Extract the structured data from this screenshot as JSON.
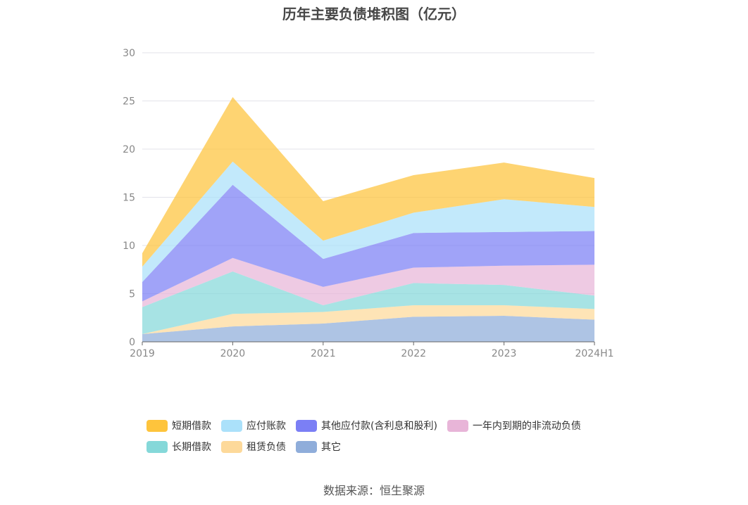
{
  "title": "历年主要负债堆积图（亿元）",
  "source": "数据来源：恒生聚源",
  "chart_data": {
    "type": "area",
    "stacked": true,
    "title": "历年主要负债堆积图（亿元）",
    "x": [
      "2019",
      "2020",
      "2021",
      "2022",
      "2023",
      "2024H1"
    ],
    "ylim": [
      0,
      30
    ],
    "yticks": [
      0,
      5,
      10,
      15,
      20,
      25,
      30
    ],
    "grid": true,
    "legend_position": "bottom",
    "series": [
      {
        "name": "其它",
        "color": "#8fadda",
        "values": [
          0.8,
          1.6,
          1.9,
          2.6,
          2.7,
          2.3
        ]
      },
      {
        "name": "租赁负债",
        "color": "#fdd99a",
        "values": [
          0.0,
          1.3,
          1.2,
          1.2,
          1.1,
          1.1
        ]
      },
      {
        "name": "长期借款",
        "color": "#85d8d9",
        "values": [
          2.8,
          4.4,
          0.7,
          2.3,
          2.1,
          1.4
        ]
      },
      {
        "name": "一年内到期的非流动负债",
        "color": "#e8b5d8",
        "values": [
          0.6,
          1.4,
          1.9,
          1.6,
          2.0,
          3.2
        ]
      },
      {
        "name": "其他应付款(含利息和股利)",
        "color": "#7b7ff5",
        "values": [
          2.0,
          7.6,
          2.9,
          3.6,
          3.5,
          3.5
        ]
      },
      {
        "name": "应付账款",
        "color": "#abe1fa",
        "values": [
          1.6,
          2.4,
          1.9,
          2.1,
          3.4,
          2.5
        ]
      },
      {
        "name": "短期借款",
        "color": "#fec43c",
        "values": [
          1.4,
          6.7,
          4.1,
          3.9,
          3.8,
          3.0
        ]
      }
    ],
    "legend_order": [
      "短期借款",
      "应付账款",
      "其他应付款(含利息和股利)",
      "一年内到期的非流动负债",
      "长期借款",
      "租赁负债",
      "其它"
    ]
  }
}
